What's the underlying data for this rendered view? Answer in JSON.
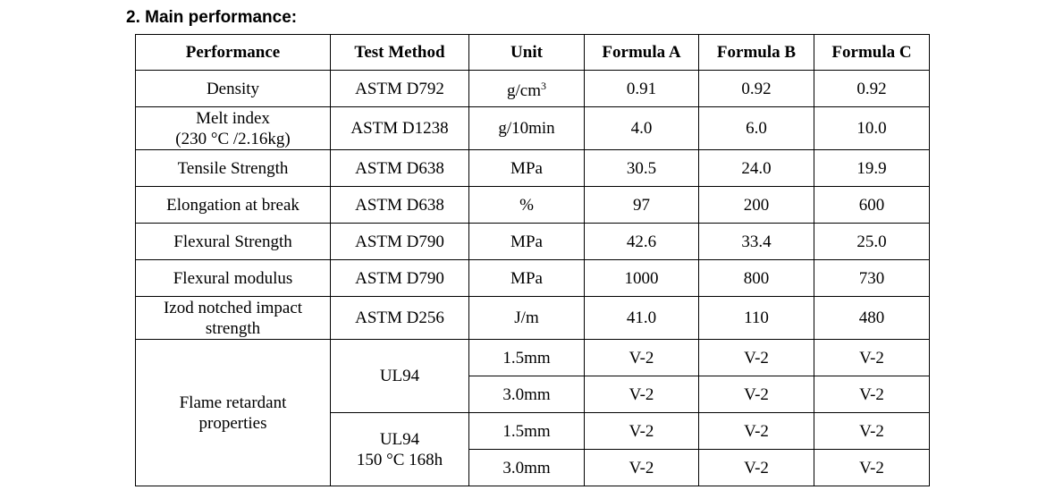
{
  "heading": "2. Main performance:",
  "table": {
    "headers": [
      "Performance",
      "Test Method",
      "Unit",
      "Formula A",
      "Formula B",
      "Formula C"
    ],
    "rows": [
      {
        "performance": [
          "Density"
        ],
        "method": [
          "ASTM D792"
        ],
        "unit": "g/cm",
        "unit_sup": "3",
        "a": "0.91",
        "b": "0.92",
        "c": "0.92"
      },
      {
        "performance": [
          "Melt index",
          "(230 °C /2.16kg)"
        ],
        "method": [
          "ASTM D1238"
        ],
        "unit": "g/10min",
        "a": "4.0",
        "b": "6.0",
        "c": "10.0"
      },
      {
        "performance": [
          "Tensile Strength"
        ],
        "method": [
          "ASTM D638"
        ],
        "unit": "MPa",
        "a": "30.5",
        "b": "24.0",
        "c": "19.9"
      },
      {
        "performance": [
          "Elongation at break"
        ],
        "method": [
          "ASTM D638"
        ],
        "unit": "%",
        "a": "97",
        "b": "200",
        "c": "600"
      },
      {
        "performance": [
          "Flexural Strength"
        ],
        "method": [
          "ASTM D790"
        ],
        "unit": "MPa",
        "a": "42.6",
        "b": "33.4",
        "c": "25.0"
      },
      {
        "performance": [
          "Flexural modulus"
        ],
        "method": [
          "ASTM D790"
        ],
        "unit": "MPa",
        "a": "1000",
        "b": "800",
        "c": "730"
      },
      {
        "performance": [
          "Izod notched impact",
          "strength"
        ],
        "method": [
          "ASTM D256"
        ],
        "unit": "J/m",
        "a": "41.0",
        "b": "110",
        "c": "480"
      }
    ],
    "flame": {
      "performance": [
        "Flame retardant",
        "properties"
      ],
      "groups": [
        {
          "method": [
            "UL94"
          ],
          "rows": [
            {
              "unit": "1.5mm",
              "a": "V-2",
              "b": "V-2",
              "c": "V-2"
            },
            {
              "unit": "3.0mm",
              "a": "V-2",
              "b": "V-2",
              "c": "V-2"
            }
          ]
        },
        {
          "method": [
            "UL94",
            "150 °C 168h"
          ],
          "rows": [
            {
              "unit": "1.5mm",
              "a": "V-2",
              "b": "V-2",
              "c": "V-2"
            },
            {
              "unit": "3.0mm",
              "a": "V-2",
              "b": "V-2",
              "c": "V-2"
            }
          ]
        }
      ]
    }
  }
}
